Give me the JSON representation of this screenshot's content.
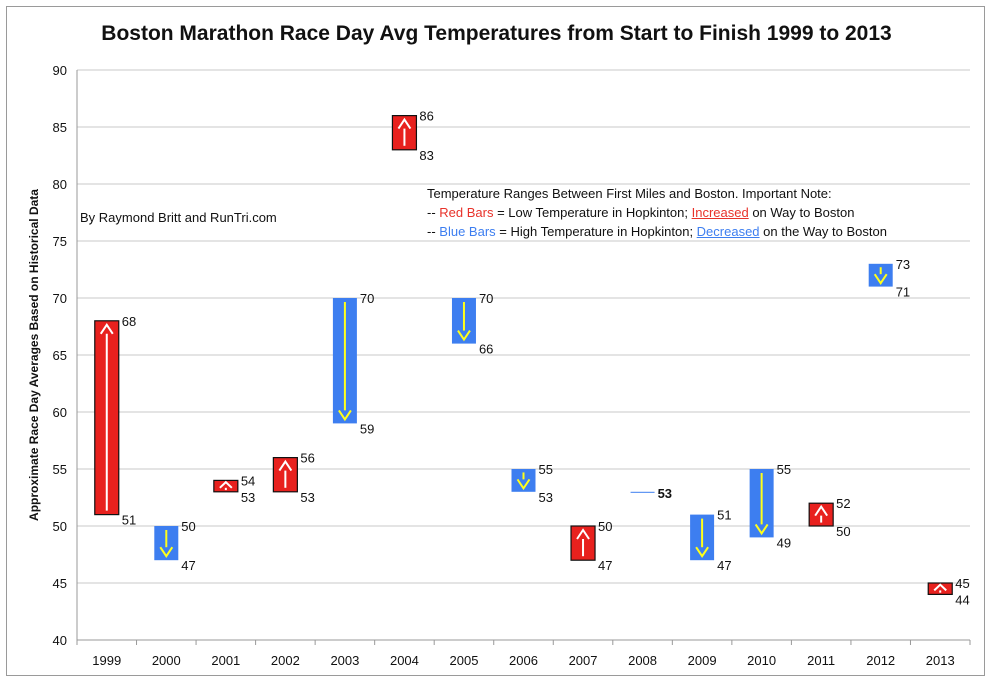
{
  "chart_data": {
    "type": "bar",
    "title": "Boston Marathon Race Day Avg Temperatures from Start to Finish 1999 to 2013",
    "xlabel": "",
    "ylabel": "Approximate Race Day Averages Based on Historical Data",
    "ylim": [
      40,
      90
    ],
    "yticks": [
      40,
      45,
      50,
      55,
      60,
      65,
      70,
      75,
      80,
      85,
      90
    ],
    "grid": true,
    "categories": [
      "1999",
      "2000",
      "2001",
      "2002",
      "2003",
      "2004",
      "2005",
      "2006",
      "2007",
      "2008",
      "2009",
      "2010",
      "2011",
      "2012",
      "2013"
    ],
    "series": [
      {
        "name": "Red Bars",
        "color": "#e8211e",
        "values": [
          {
            "x": "1999",
            "low": 51,
            "high": 68
          },
          {
            "x": "2001",
            "low": 53,
            "high": 54
          },
          {
            "x": "2002",
            "low": 53,
            "high": 56
          },
          {
            "x": "2004",
            "low": 83,
            "high": 86
          },
          {
            "x": "2007",
            "low": 47,
            "high": 50
          },
          {
            "x": "2011",
            "low": 50,
            "high": 52
          },
          {
            "x": "2013",
            "low": 44,
            "high": 45
          }
        ]
      },
      {
        "name": "Blue Bars",
        "color": "#3d7ef0",
        "values": [
          {
            "x": "2000",
            "low": 47,
            "high": 50
          },
          {
            "x": "2003",
            "low": 59,
            "high": 70
          },
          {
            "x": "2005",
            "low": 66,
            "high": 70
          },
          {
            "x": "2006",
            "low": 53,
            "high": 55
          },
          {
            "x": "2008",
            "low": 53,
            "high": 53
          },
          {
            "x": "2009",
            "low": 47,
            "high": 51
          },
          {
            "x": "2010",
            "low": 49,
            "high": 55
          },
          {
            "x": "2012",
            "low": 71,
            "high": 73
          }
        ]
      }
    ],
    "annotations": {
      "byline": "By Raymond Britt and RunTri.com",
      "note_heading": "Temperature Ranges Between First Miles and Boston. Important Note:",
      "note_red_prefix": "-- ",
      "note_red_term": "Red Bars",
      "note_red_mid": " = Low Temperature in Hopkinton; ",
      "note_red_verb": "Increased",
      "note_red_end": " on Way to Boston",
      "note_blue_prefix": "-- ",
      "note_blue_term": "Blue Bars",
      "note_blue_mid": " = High Temperature in Hopkinton; ",
      "note_blue_verb": "Decreased",
      "note_blue_end": " on the Way to Boston"
    },
    "colors": {
      "arrow_red_bar": "#ffffff",
      "arrow_blue_bar": "#ffff1a",
      "gridline": "#c9c9c9"
    }
  }
}
